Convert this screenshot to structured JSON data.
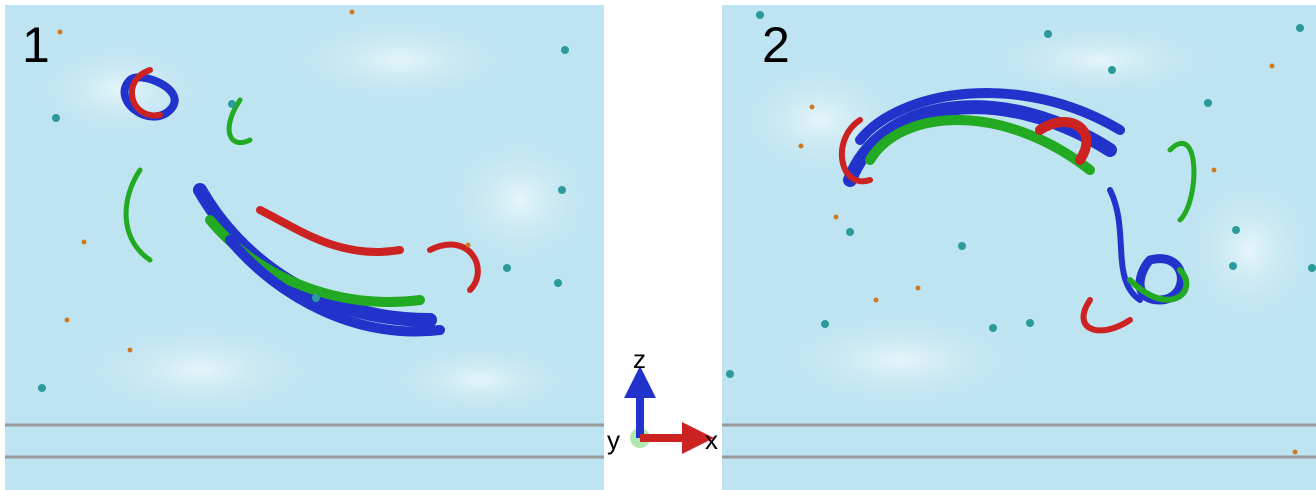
{
  "panels": [
    {
      "label": "1"
    },
    {
      "label": "2"
    }
  ],
  "axes": {
    "z": "z",
    "y": "y",
    "x": "x"
  }
}
